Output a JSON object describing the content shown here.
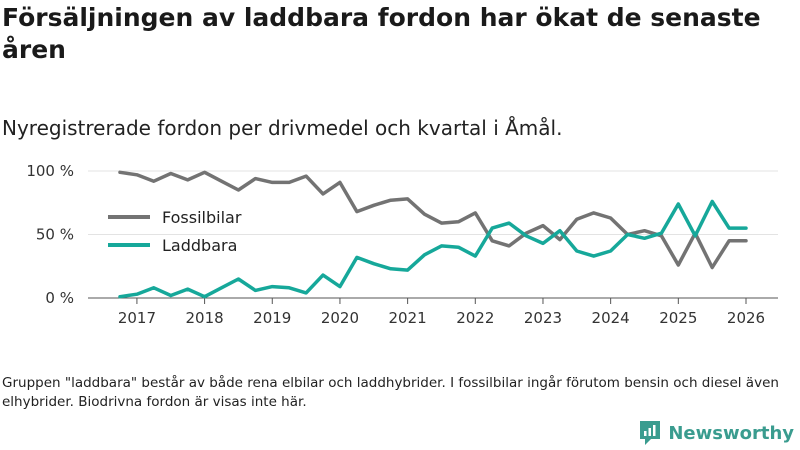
{
  "header": {
    "title": "Försäljningen av laddbara fordon har ökat de senaste åren",
    "subtitle": "Nyregistrerade fordon per drivmedel och kvartal i Åmål."
  },
  "chart_data": {
    "type": "line",
    "title": "Försäljningen av laddbara fordon har ökat de senaste åren",
    "subtitle": "Nyregistrerade fordon per drivmedel och kvartal i Åmål.",
    "xlabel": "",
    "ylabel": "",
    "x_range": [
      2016.75,
      2026.0
    ],
    "ylim": [
      0,
      100
    ],
    "y_ticks": [
      0,
      50,
      100
    ],
    "y_tick_labels": [
      "0 %",
      "50 %",
      "100 %"
    ],
    "x_ticks": [
      2017,
      2018,
      2019,
      2020,
      2021,
      2022,
      2023,
      2024,
      2025,
      2026
    ],
    "x_tick_labels": [
      "2017",
      "2018",
      "2019",
      "2020",
      "2021",
      "2022",
      "2023",
      "2024",
      "2025",
      "2026"
    ],
    "grid": true,
    "legend_position": "middle-left",
    "x": [
      2016.75,
      2017.0,
      2017.25,
      2017.5,
      2017.75,
      2018.0,
      2018.25,
      2018.5,
      2018.75,
      2019.0,
      2019.25,
      2019.5,
      2019.75,
      2020.0,
      2020.25,
      2020.5,
      2020.75,
      2021.0,
      2021.25,
      2021.5,
      2021.75,
      2022.0,
      2022.25,
      2022.5,
      2022.75,
      2023.0,
      2023.25,
      2023.5,
      2023.75,
      2024.0,
      2024.25,
      2024.5,
      2024.75,
      2025.0,
      2025.25,
      2025.5,
      2025.75,
      2026.0
    ],
    "series": [
      {
        "name": "Fossilbilar",
        "color": "#737373",
        "values": [
          99,
          97,
          92,
          98,
          93,
          99,
          92,
          85,
          94,
          91,
          91,
          96,
          82,
          91,
          68,
          73,
          77,
          78,
          66,
          59,
          60,
          67,
          45,
          41,
          51,
          57,
          46,
          62,
          67,
          63,
          50,
          53,
          49,
          26,
          51,
          24,
          45,
          45
        ]
      },
      {
        "name": "Laddbara",
        "color": "#16a89a",
        "values": [
          1,
          3,
          8,
          2,
          7,
          1,
          8,
          15,
          6,
          9,
          8,
          4,
          18,
          9,
          32,
          27,
          23,
          22,
          34,
          41,
          40,
          33,
          55,
          59,
          49,
          43,
          53,
          37,
          33,
          37,
          50,
          47,
          51,
          74,
          49,
          76,
          55,
          55
        ]
      }
    ],
    "note": "Gruppen \"laddbara\" består av både rena elbilar och laddhybrider. I fossilbilar ingår förutom bensin och diesel även elhybrider. Biodrivna fordon är visas inte här."
  },
  "footer": {
    "note": "Gruppen \"laddbara\" består av både rena elbilar och laddhybrider. I fossilbilar ingår förutom bensin och diesel även elhybrider. Biodrivna fordon är visas inte här.",
    "brand": "Newsworthy",
    "brand_color": "#3a9c8f"
  }
}
